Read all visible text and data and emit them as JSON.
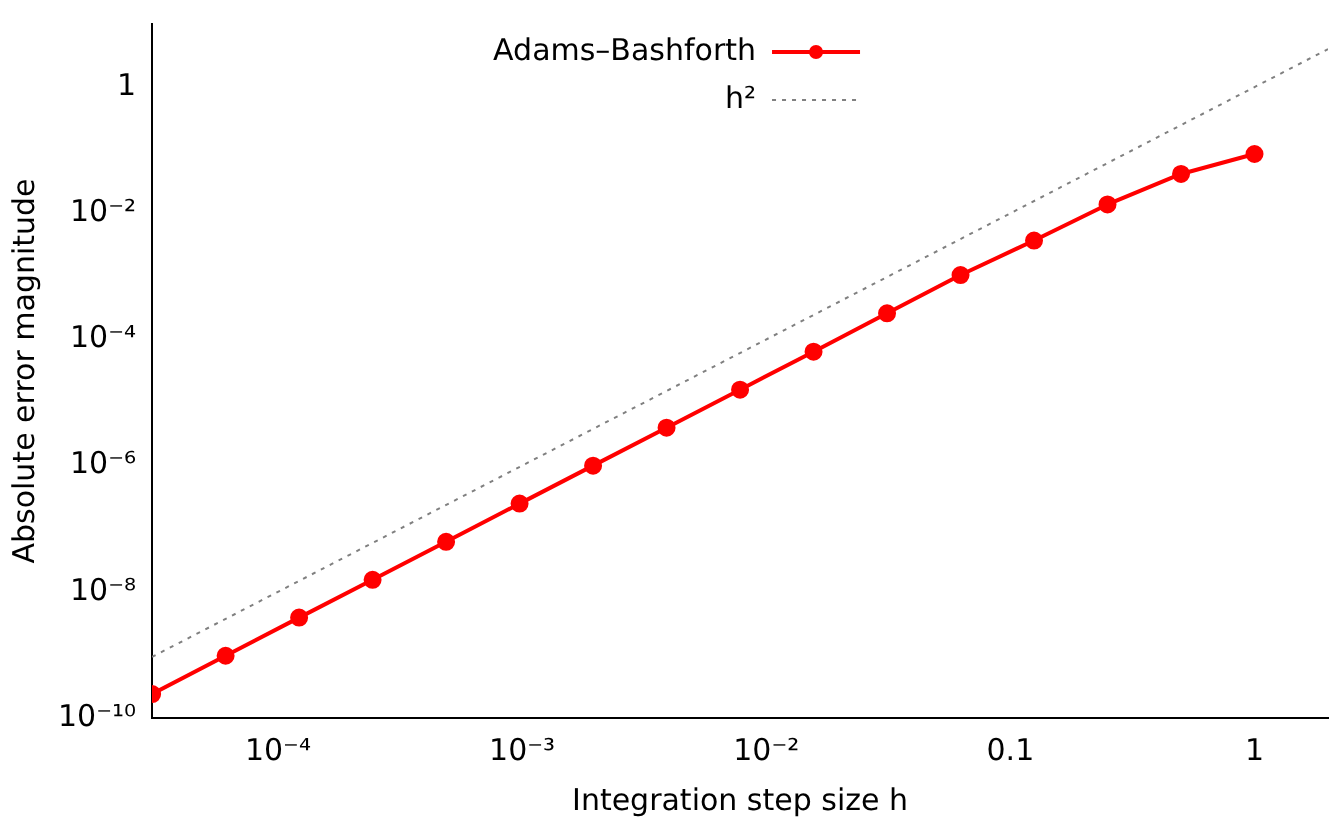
{
  "chart_data": {
    "type": "line",
    "xlabel": "Integration step size h",
    "ylabel": "Absolute error magnitude",
    "log": "xy",
    "grid": false,
    "legend": "top",
    "xlim": [
      3.05e-05,
      2
    ],
    "ylim": [
      1e-10,
      10
    ],
    "xticks": [
      {
        "value": 0.0001,
        "label": "10⁻⁴"
      },
      {
        "value": 0.001,
        "label": "10⁻³"
      },
      {
        "value": 0.01,
        "label": "10⁻²"
      },
      0.1,
      1
    ],
    "yticks": [
      {
        "value": 1e-10,
        "label": "10⁻¹⁰"
      },
      {
        "value": 1e-08,
        "label": "10⁻⁸"
      },
      {
        "value": 1e-06,
        "label": "10⁻⁶"
      },
      {
        "value": 0.0001,
        "label": "10⁻⁴"
      },
      {
        "value": 0.01,
        "label": "10⁻²"
      },
      1
    ],
    "series": [
      {
        "name": "Adams–Bashforth",
        "color": "#ff0000",
        "marker": "circle",
        "line_style": "solid",
        "x": [
          1,
          0.5,
          0.25,
          0.125,
          0.0625,
          0.03125,
          0.015625,
          0.0078125,
          0.00390625,
          0.001953125,
          0.0009765625,
          0.00048828125,
          0.000244140625,
          0.0001220703125,
          6.103515625e-05,
          3.0517578125e-05
        ],
        "values": [
          0.087,
          0.042,
          0.0138,
          0.0037,
          0.00105,
          0.00026,
          6.4e-05,
          1.6e-05,
          4e-06,
          1e-06,
          2.5e-07,
          6.2e-08,
          1.55e-08,
          3.9e-09,
          9.7e-10,
          2.4e-10
        ]
      },
      {
        "name": "h²",
        "color": "#808080",
        "marker": "none",
        "line_style": "dotted",
        "x": [
          3.05e-05,
          2
        ],
        "values": [
          9.3e-10,
          4
        ]
      }
    ]
  }
}
